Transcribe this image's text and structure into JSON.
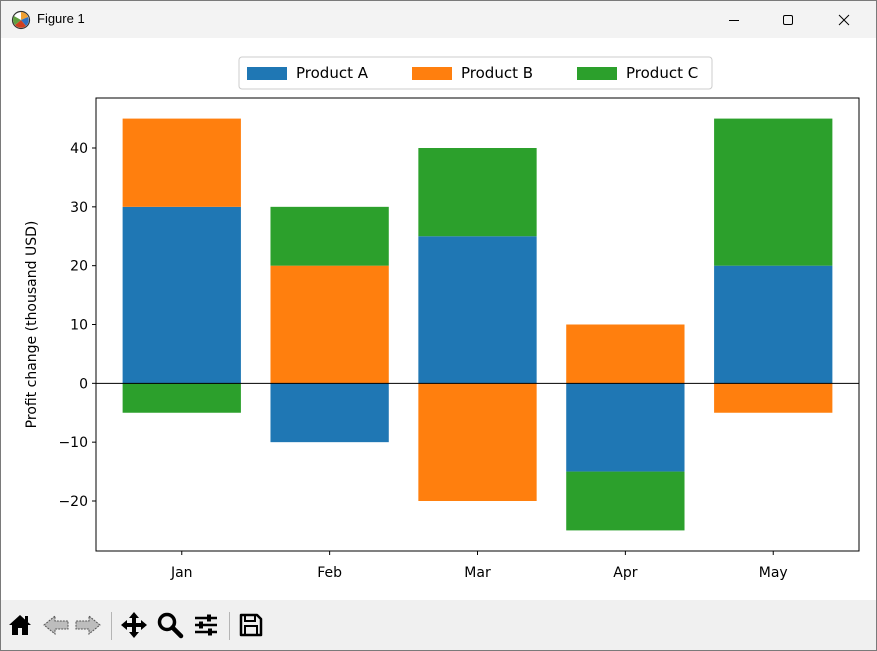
{
  "window": {
    "title": "Figure 1",
    "app_icon": "matplotlib-icon",
    "controls": [
      "minimize-icon",
      "maximize-icon",
      "close-icon"
    ]
  },
  "toolbar": {
    "tools": [
      "home-icon",
      "back-arrow-icon",
      "forward-arrow-icon",
      "pan-icon",
      "zoom-icon",
      "configure-subplots-icon",
      "save-icon"
    ]
  },
  "chart_data": {
    "type": "bar",
    "stacked": true,
    "categories": [
      "Jan",
      "Feb",
      "Mar",
      "Apr",
      "May"
    ],
    "series": [
      {
        "name": "Product A",
        "color": "#1f77b4",
        "values": [
          30,
          -10,
          25,
          -15,
          20
        ]
      },
      {
        "name": "Product B",
        "color": "#ff7f0e",
        "values": [
          15,
          20,
          -20,
          10,
          -5
        ]
      },
      {
        "name": "Product C",
        "color": "#2ca02c",
        "values": [
          -5,
          10,
          15,
          -10,
          25
        ]
      }
    ],
    "title": "",
    "xlabel": "",
    "ylabel": "Profit change (thousand USD)",
    "ylim": [
      -28.5,
      48.5
    ],
    "yticks": [
      -20,
      -10,
      0,
      10,
      20,
      30,
      40
    ],
    "ytick_labels": [
      "−20",
      "−10",
      "0",
      "10",
      "20",
      "30",
      "40"
    ],
    "zero_line": true,
    "grid": false,
    "legend_position": "upper-center-outside",
    "legend_columns": 3
  }
}
